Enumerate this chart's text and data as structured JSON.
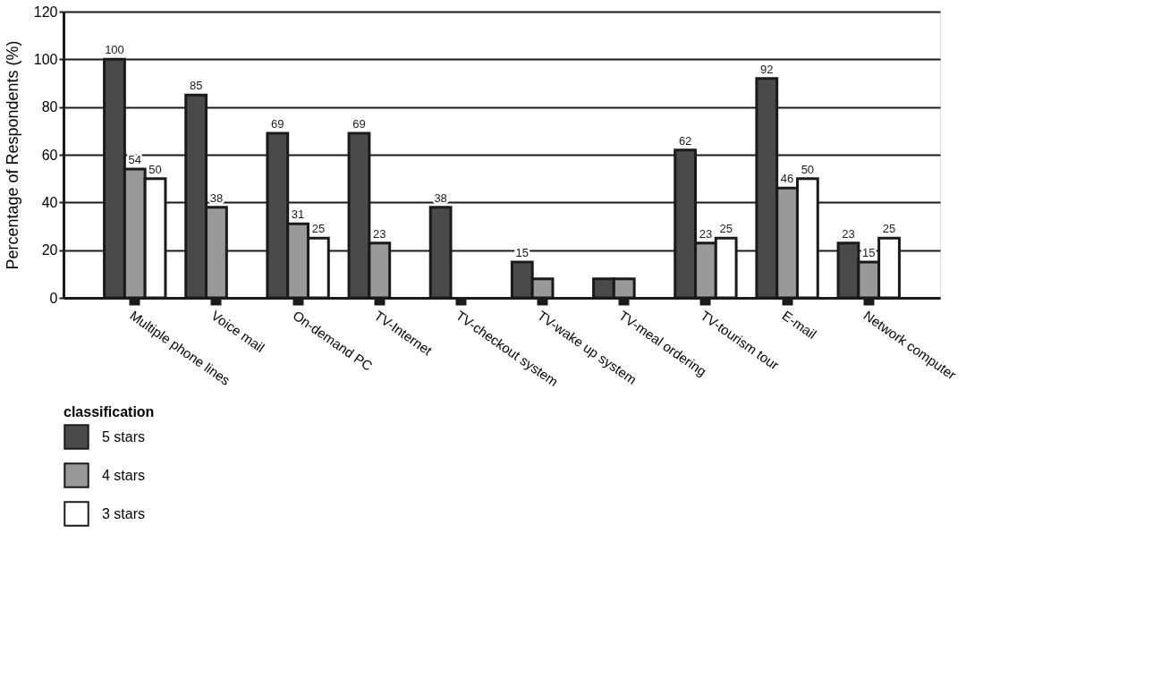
{
  "chart_data": {
    "type": "bar",
    "ylabel": "Percentage of Respondents (%)",
    "legend_title": "classification",
    "categories": [
      "Multiple phone lines",
      "Voice mail",
      "On-demand PC",
      "TV-Internet",
      "TV-checkout system",
      "TV-wake up system",
      "TV-meal ordering",
      "TV-tourism tour",
      "E-mail",
      "Network computer"
    ],
    "series": [
      {
        "name": "5 stars",
        "color": "#4a4a4a",
        "values": [
          100,
          85,
          69,
          69,
          38,
          15,
          8,
          62,
          92,
          23
        ],
        "value_labels": [
          "100",
          "85",
          "69",
          "69",
          "38",
          "15",
          null,
          "62",
          "92",
          "23"
        ]
      },
      {
        "name": "4 stars",
        "color": "#999999",
        "values": [
          54,
          38,
          31,
          23,
          null,
          8,
          8,
          23,
          46,
          15
        ],
        "value_labels": [
          "54",
          "38",
          "31",
          "23",
          null,
          null,
          null,
          "23",
          "46",
          "15"
        ]
      },
      {
        "name": "3 stars",
        "color": "#ffffff",
        "values": [
          50,
          null,
          25,
          null,
          null,
          null,
          null,
          25,
          50,
          25
        ],
        "value_labels": [
          "50",
          null,
          "25",
          null,
          null,
          null,
          null,
          "25",
          "50",
          "25"
        ]
      }
    ],
    "ylim": [
      0,
      120
    ],
    "yticks": [
      0,
      20,
      40,
      60,
      80,
      100,
      120
    ],
    "grid": "y",
    "legend": "bottom left"
  }
}
